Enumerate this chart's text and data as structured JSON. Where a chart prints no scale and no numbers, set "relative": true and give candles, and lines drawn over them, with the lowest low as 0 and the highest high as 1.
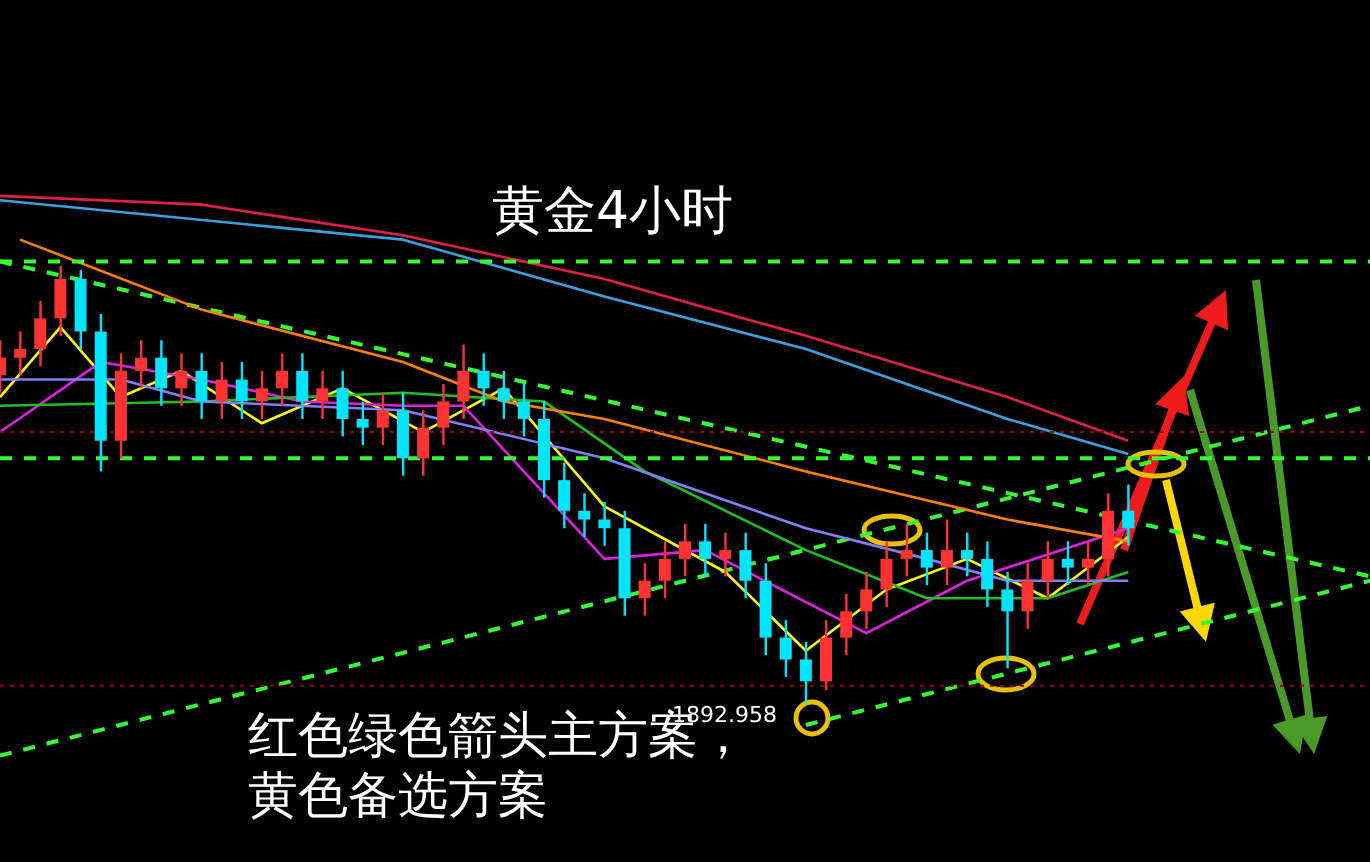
{
  "chart_data": {
    "type": "candlestick",
    "title": "黄金4小时",
    "relative": true,
    "tick_labels": false,
    "legend": false,
    "marker": "none",
    "categories": [
      null,
      null,
      null,
      null,
      null,
      null,
      null,
      null,
      null,
      null,
      null,
      null,
      null,
      null,
      null,
      null,
      null,
      null,
      null,
      null,
      null,
      null,
      null,
      null,
      null,
      null,
      null,
      null,
      null,
      null,
      null,
      null,
      null,
      null,
      null,
      null,
      null,
      null,
      null,
      null,
      null,
      null,
      null,
      null,
      null,
      null,
      null,
      null,
      null,
      null,
      null,
      null,
      null,
      null,
      null,
      null,
      null,
      null,
      null,
      null,
      null,
      null,
      null,
      null,
      null,
      null,
      null,
      null,
      null
    ],
    "ohlc": [
      [
        0.75,
        0.83,
        0.71,
        0.79
      ],
      [
        0.79,
        0.85,
        0.75,
        0.81
      ],
      [
        0.81,
        0.92,
        0.77,
        0.88
      ],
      [
        0.88,
        1,
        0.84,
        0.97
      ],
      [
        0.97,
        0.99,
        0.81,
        0.85
      ],
      [
        0.85,
        0.89,
        0.53,
        0.6
      ],
      [
        0.6,
        0.8,
        0.56,
        0.76
      ],
      [
        0.76,
        0.83,
        0.72,
        0.79
      ],
      [
        0.79,
        0.83,
        0.68,
        0.72
      ],
      [
        0.72,
        0.8,
        0.68,
        0.76
      ],
      [
        0.76,
        0.8,
        0.65,
        0.69
      ],
      [
        0.69,
        0.78,
        0.65,
        0.74
      ],
      [
        0.74,
        0.78,
        0.65,
        0.69
      ],
      [
        0.69,
        0.76,
        0.65,
        0.72
      ],
      [
        0.72,
        0.8,
        0.68,
        0.76
      ],
      [
        0.76,
        0.8,
        0.65,
        0.69
      ],
      [
        0.69,
        0.76,
        0.65,
        0.72
      ],
      [
        0.72,
        0.76,
        0.61,
        0.65
      ],
      [
        0.65,
        0.69,
        0.59,
        0.63
      ],
      [
        0.63,
        0.71,
        0.59,
        0.67
      ],
      [
        0.67,
        0.71,
        0.52,
        0.56
      ],
      [
        0.56,
        0.67,
        0.52,
        0.63
      ],
      [
        0.63,
        0.73,
        0.59,
        0.69
      ],
      [
        0.69,
        0.82,
        0.65,
        0.76
      ],
      [
        0.76,
        0.8,
        0.68,
        0.72
      ],
      [
        0.72,
        0.76,
        0.65,
        0.69
      ],
      [
        0.69,
        0.73,
        0.61,
        0.65
      ],
      [
        0.65,
        0.69,
        0.47,
        0.51
      ],
      [
        0.51,
        0.55,
        0.4,
        0.44
      ],
      [
        0.44,
        0.48,
        0.38,
        0.42
      ],
      [
        0.42,
        0.46,
        0.36,
        0.4
      ],
      [
        0.4,
        0.44,
        0.2,
        0.24
      ],
      [
        0.24,
        0.32,
        0.2,
        0.28
      ],
      [
        0.28,
        0.37,
        0.24,
        0.33
      ],
      [
        0.33,
        0.41,
        0.29,
        0.37
      ],
      [
        0.37,
        0.41,
        0.29,
        0.33
      ],
      [
        0.33,
        0.39,
        0.29,
        0.35
      ],
      [
        0.35,
        0.39,
        0.24,
        0.28
      ],
      [
        0.28,
        0.32,
        0.11,
        0.15
      ],
      [
        0.15,
        0.19,
        0.06,
        0.1
      ],
      [
        0.1,
        0.14,
        0,
        0.05
      ],
      [
        0.05,
        0.19,
        0.03,
        0.15
      ],
      [
        0.15,
        0.25,
        0.11,
        0.21
      ],
      [
        0.21,
        0.3,
        0.17,
        0.26
      ],
      [
        0.26,
        0.37,
        0.22,
        0.33
      ],
      [
        0.33,
        0.41,
        0.29,
        0.35
      ],
      [
        0.35,
        0.39,
        0.27,
        0.31
      ],
      [
        0.31,
        0.42,
        0.27,
        0.35
      ],
      [
        0.35,
        0.39,
        0.29,
        0.33
      ],
      [
        0.33,
        0.37,
        0.22,
        0.26
      ],
      [
        0.26,
        0.3,
        0.08,
        0.21
      ],
      [
        0.21,
        0.32,
        0.17,
        0.28
      ],
      [
        0.28,
        0.37,
        0.24,
        0.33
      ],
      [
        0.33,
        0.37,
        0.27,
        0.31
      ],
      [
        0.31,
        0.37,
        0.27,
        0.33
      ],
      [
        0.33,
        0.48,
        0.29,
        0.44
      ],
      [
        0.44,
        0.5,
        0.36,
        0.4
      ],
      null,
      null,
      null,
      null,
      null,
      null,
      null,
      null,
      null,
      null,
      null,
      null
    ],
    "colors": [
      "#ff3333",
      "#ff3333",
      "#ff3333",
      "#ff3333",
      "#00e5ff",
      "#00e5ff",
      "#ff3333",
      "#ff3333",
      "#00e5ff",
      "#ff3333",
      "#00e5ff",
      "#ff3333",
      "#00e5ff",
      "#ff3333",
      "#ff3333",
      "#00e5ff",
      "#ff3333",
      "#00e5ff",
      "#00e5ff",
      "#ff3333",
      "#00e5ff",
      "#ff3333",
      "#ff3333",
      "#ff3333",
      "#00e5ff",
      "#00e5ff",
      "#00e5ff",
      "#00e5ff",
      "#00e5ff",
      "#00e5ff",
      "#00e5ff",
      "#00e5ff",
      "#ff3333",
      "#ff3333",
      "#ff3333",
      "#00e5ff",
      "#ff3333",
      "#00e5ff",
      "#00e5ff",
      "#00e5ff",
      "#00e5ff",
      "#ff3333",
      "#ff3333",
      "#ff3333",
      "#ff3333",
      "#ff3333",
      "#00e5ff",
      "#ff3333",
      "#00e5ff",
      "#00e5ff",
      "#00e5ff",
      "#ff3333",
      "#ff3333",
      "#00e5ff",
      "#ff3333",
      "#ff3333",
      "#00e5ff",
      null,
      null,
      null,
      null,
      null,
      null,
      null,
      null,
      null,
      null,
      null,
      null
    ],
    "series": [
      {
        "type": "line",
        "color": "#e0204a",
        "line_style": "solid",
        "values": [
          1.16,
          null,
          null,
          null,
          null,
          null,
          null,
          null,
          null,
          null,
          1.14,
          null,
          null,
          null,
          null,
          null,
          null,
          null,
          null,
          null,
          1.07,
          null,
          null,
          null,
          null,
          null,
          null,
          null,
          null,
          null,
          0.97,
          null,
          null,
          null,
          null,
          null,
          null,
          null,
          null,
          null,
          0.84,
          null,
          null,
          null,
          null,
          null,
          null,
          null,
          null,
          null,
          0.7,
          null,
          null,
          null,
          null,
          null,
          0.6,
          null,
          null,
          null,
          null,
          null,
          null,
          null,
          null,
          null,
          null,
          null,
          null
        ]
      },
      {
        "type": "line",
        "color": "#3aa0e0",
        "line_style": "solid",
        "values": [
          1.15,
          null,
          null,
          null,
          null,
          null,
          null,
          null,
          null,
          null,
          null,
          null,
          null,
          null,
          null,
          null,
          null,
          null,
          null,
          null,
          1.06,
          null,
          null,
          null,
          null,
          null,
          null,
          null,
          null,
          null,
          0.93,
          null,
          null,
          null,
          null,
          null,
          null,
          null,
          null,
          null,
          0.81,
          null,
          null,
          null,
          null,
          null,
          null,
          null,
          null,
          null,
          0.65,
          null,
          null,
          null,
          null,
          null,
          0.57,
          null,
          null,
          null,
          null,
          null,
          null,
          null,
          null,
          null,
          null,
          null,
          null
        ]
      },
      {
        "type": "line",
        "color": "#ff8000",
        "line_style": "solid",
        "values": [
          null,
          1.06,
          null,
          null,
          null,
          null,
          null,
          null,
          null,
          null,
          0.9,
          null,
          null,
          null,
          null,
          null,
          null,
          null,
          null,
          null,
          0.78,
          null,
          null,
          null,
          null,
          0.69,
          null,
          null,
          null,
          null,
          0.65,
          null,
          null,
          null,
          null,
          null,
          null,
          null,
          null,
          null,
          0.53,
          null,
          null,
          null,
          null,
          null,
          null,
          null,
          null,
          null,
          0.42,
          null,
          null,
          null,
          null,
          null,
          0.37,
          null,
          null,
          null,
          null,
          null,
          null,
          null,
          null,
          null,
          null,
          null,
          null
        ]
      },
      {
        "type": "line",
        "color": "#8080ff",
        "line_style": "solid",
        "values": [
          0.74,
          null,
          null,
          null,
          null,
          null,
          0.74,
          null,
          null,
          null,
          0.69,
          null,
          null,
          null,
          null,
          null,
          null,
          null,
          null,
          null,
          0.67,
          null,
          null,
          null,
          null,
          null,
          null,
          null,
          null,
          null,
          0.56,
          null,
          null,
          null,
          null,
          null,
          null,
          null,
          null,
          null,
          0.4,
          null,
          null,
          null,
          null,
          null,
          0.33,
          null,
          null,
          null,
          0.28,
          null,
          null,
          null,
          null,
          null,
          0.28,
          null,
          null,
          null,
          null,
          null,
          null,
          null,
          null,
          null,
          null,
          null,
          null
        ]
      },
      {
        "type": "line",
        "color": "#20c020",
        "line_style": "solid",
        "values": [
          0.68,
          null,
          null,
          null,
          null,
          null,
          null,
          null,
          null,
          null,
          0.69,
          null,
          null,
          null,
          null,
          null,
          null,
          null,
          null,
          null,
          0.71,
          null,
          null,
          null,
          null,
          null,
          null,
          0.69,
          null,
          null,
          null,
          null,
          0.53,
          null,
          null,
          null,
          null,
          null,
          null,
          null,
          0.35,
          null,
          null,
          null,
          null,
          null,
          0.24,
          null,
          null,
          null,
          null,
          null,
          0.24,
          null,
          null,
          null,
          0.3,
          null,
          null,
          null,
          null,
          null,
          null,
          null,
          null,
          null,
          null,
          null,
          null
        ]
      },
      {
        "type": "line",
        "color": "#e020e0",
        "line_style": "solid",
        "values": [
          0.62,
          null,
          null,
          null,
          null,
          0.78,
          null,
          null,
          null,
          null,
          0.74,
          null,
          null,
          null,
          null,
          0.69,
          null,
          null,
          null,
          null,
          0.68,
          null,
          null,
          0.68,
          null,
          null,
          null,
          null,
          null,
          null,
          0.33,
          null,
          null,
          null,
          null,
          0.35,
          null,
          null,
          null,
          null,
          null,
          null,
          null,
          0.16,
          null,
          null,
          null,
          null,
          0.28,
          null,
          null,
          null,
          null,
          null,
          null,
          null,
          0.4,
          null,
          null,
          null,
          null,
          null,
          null,
          null,
          null,
          null,
          null,
          null,
          null
        ]
      },
      {
        "type": "line",
        "color": "#ffff00",
        "line_style": "solid",
        "values": [
          0.7,
          null,
          null,
          0.86,
          null,
          null,
          0.7,
          null,
          null,
          0.76,
          null,
          null,
          null,
          0.64,
          null,
          null,
          null,
          0.72,
          null,
          null,
          null,
          0.62,
          null,
          null,
          null,
          0.72,
          null,
          null,
          null,
          null,
          0.45,
          null,
          null,
          null,
          null,
          null,
          0.3,
          null,
          null,
          null,
          0.12,
          null,
          null,
          null,
          0.26,
          null,
          null,
          null,
          0.33,
          null,
          null,
          null,
          0.24,
          null,
          null,
          null,
          0.38,
          null,
          null,
          null,
          null,
          null,
          null,
          null,
          null,
          null,
          null,
          null,
          null
        ]
      },
      {
        "type": "line",
        "color": "#33ff33",
        "line_style": "dashed",
        "values": [
          1.01,
          null,
          null,
          null,
          null,
          null,
          null,
          null,
          null,
          null,
          null,
          null,
          null,
          null,
          null,
          null,
          null,
          null,
          null,
          null,
          null,
          null,
          null,
          null,
          null,
          null,
          null,
          null,
          null,
          null,
          null,
          null,
          null,
          null,
          null,
          null,
          null,
          null,
          null,
          null,
          null,
          null,
          null,
          null,
          null,
          null,
          null,
          null,
          null,
          null,
          null,
          null,
          null,
          null,
          null,
          null,
          null,
          null,
          null,
          null,
          null,
          null,
          null,
          null,
          null,
          null,
          null,
          null,
          0.29
        ]
      },
      {
        "type": "line",
        "color": "#33ff33",
        "line_style": "dashed",
        "values": [
          -0.12,
          null,
          null,
          null,
          null,
          null,
          null,
          null,
          null,
          null,
          null,
          null,
          null,
          null,
          null,
          null,
          null,
          null,
          null,
          null,
          null,
          null,
          null,
          null,
          null,
          null,
          null,
          null,
          null,
          null,
          null,
          null,
          null,
          null,
          null,
          null,
          null,
          null,
          null,
          null,
          null,
          null,
          null,
          null,
          null,
          null,
          null,
          null,
          null,
          null,
          null,
          null,
          null,
          null,
          null,
          null,
          null,
          null,
          null,
          null,
          null,
          null,
          null,
          null,
          null,
          null,
          null,
          null,
          0.68
        ]
      },
      {
        "type": "line",
        "color": "#33ff33",
        "line_style": "dashed",
        "values": [
          null,
          null,
          null,
          null,
          null,
          null,
          null,
          null,
          null,
          null,
          null,
          null,
          null,
          null,
          null,
          null,
          null,
          null,
          null,
          null,
          null,
          null,
          null,
          null,
          null,
          null,
          null,
          null,
          null,
          null,
          null,
          null,
          null,
          null,
          null,
          null,
          null,
          null,
          null,
          null,
          -0.05,
          null,
          null,
          null,
          null,
          null,
          null,
          null,
          null,
          null,
          null,
          null,
          null,
          null,
          null,
          null,
          null,
          null,
          null,
          null,
          null,
          null,
          null,
          null,
          null,
          null,
          null,
          null,
          0.28
        ]
      }
    ],
    "ref_lines": [
      {
        "axis": "y",
        "value": 1.01,
        "color": "#33ff33",
        "line_style": "dashed"
      },
      {
        "axis": "y",
        "value": 0.56,
        "color": "#33ff33",
        "line_style": "dashed"
      },
      {
        "axis": "y",
        "value": 0.62,
        "color": "#a00000",
        "line_style": "dotted"
      },
      {
        "axis": "y",
        "value": 0.04,
        "color": "#a00000",
        "line_style": "dotted"
      }
    ],
    "annotations": [
      "1892.958",
      "红色绿色箭头主方案，",
      "黄色备选方案"
    ]
  }
}
